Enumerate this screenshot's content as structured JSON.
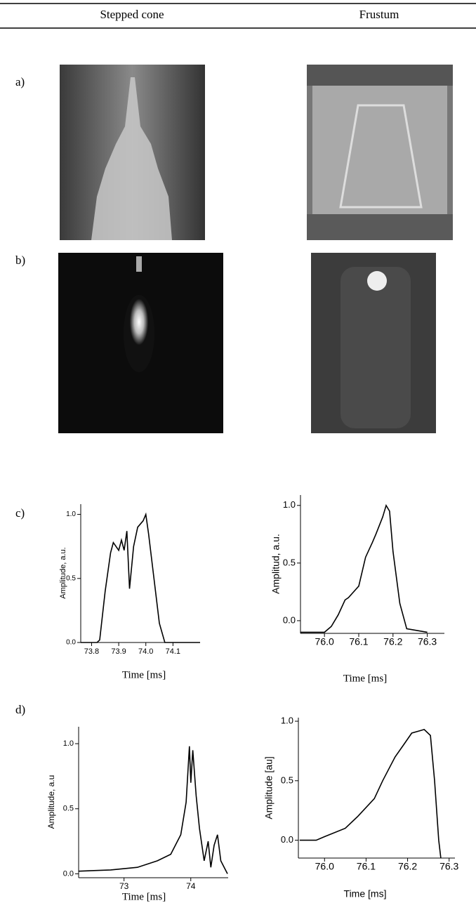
{
  "table": {
    "headers": [
      "Stepped cone",
      "Frustum"
    ],
    "row_labels": [
      "a)",
      "b)",
      "c)",
      "d)"
    ]
  },
  "chart_data": [
    {
      "type": "line",
      "x_label": "Time [ms]",
      "y_label": "Amplitude, a.u.",
      "color": "#000000",
      "x": [
        73.76,
        73.82,
        73.83,
        73.85,
        73.87,
        73.88,
        73.9,
        73.91,
        73.92,
        73.93,
        73.94,
        73.955,
        73.97,
        73.99,
        74.0,
        74.01,
        74.03,
        74.05,
        74.07,
        74.2
      ],
      "values": [
        0,
        0,
        0.02,
        0.4,
        0.7,
        0.78,
        0.72,
        0.8,
        0.72,
        0.87,
        0.42,
        0.75,
        0.9,
        0.95,
        1.0,
        0.85,
        0.5,
        0.15,
        0,
        0
      ],
      "xlim": [
        73.76,
        74.2
      ],
      "ylim": [
        0,
        1.08
      ],
      "xticks": [
        73.8,
        73.9,
        {
          "value": 74,
          "label": "74.0"
        },
        74.1
      ],
      "yticks": [
        {
          "value": 0,
          "label": "0.0"
        },
        0.5,
        {
          "value": 1,
          "label": "1.0"
        }
      ]
    },
    {
      "type": "line",
      "x_label": "Time [ms]",
      "y_label": "Amplitud, a.u.",
      "color": "#000000",
      "x": [
        75.93,
        76.0,
        76.02,
        76.04,
        76.06,
        76.07,
        76.1,
        76.12,
        76.14,
        76.15,
        76.17,
        76.18,
        76.19,
        76.2,
        76.22,
        76.24,
        76.3
      ],
      "values": [
        -0.1,
        -0.1,
        -0.05,
        0.05,
        0.18,
        0.2,
        0.3,
        0.55,
        0.68,
        0.75,
        0.9,
        1.0,
        0.95,
        0.6,
        0.15,
        -0.07,
        -0.1
      ],
      "xlim": [
        75.93,
        76.35
      ],
      "ylim": [
        -0.11,
        1.09
      ],
      "xticks": [
        {
          "value": 76,
          "label": "76.0"
        },
        76.1,
        76.2,
        76.3
      ],
      "yticks": [
        {
          "value": 0,
          "label": "0.0"
        },
        0.5,
        {
          "value": 1,
          "label": "1.0"
        }
      ]
    },
    {
      "type": "line",
      "x_label": "Time [ms]",
      "y_label": "Amplitude, a.u",
      "color": "#000000",
      "x": [
        72.32,
        72.8,
        73.2,
        73.5,
        73.7,
        73.85,
        73.93,
        73.98,
        74.0,
        74.03,
        74.08,
        74.13,
        74.2,
        74.26,
        74.3,
        74.35,
        74.4,
        74.45,
        74.5,
        74.55
      ],
      "values": [
        0.02,
        0.03,
        0.05,
        0.1,
        0.15,
        0.3,
        0.55,
        0.98,
        0.7,
        0.95,
        0.6,
        0.35,
        0.1,
        0.25,
        0.05,
        0.22,
        0.3,
        0.1,
        0.05,
        0
      ],
      "xlim": [
        72.32,
        74.56
      ],
      "ylim": [
        -0.03,
        1.13
      ],
      "xticks": [
        73,
        74
      ],
      "yticks": [
        {
          "value": 0,
          "label": "0.0"
        },
        0.5,
        {
          "value": 1,
          "label": "1.0"
        }
      ]
    },
    {
      "type": "line",
      "x_label": "Time [ms]",
      "y_label": "Amplitude [au]",
      "color": "#000000",
      "x": [
        75.94,
        75.98,
        76.0,
        76.05,
        76.08,
        76.12,
        76.14,
        76.17,
        76.19,
        76.21,
        76.23,
        76.24,
        76.255,
        76.265,
        76.275,
        76.28
      ],
      "values": [
        0,
        0,
        0.03,
        0.1,
        0.2,
        0.35,
        0.5,
        0.7,
        0.8,
        0.9,
        0.92,
        0.93,
        0.88,
        0.5,
        0,
        -0.15
      ],
      "xlim": [
        75.937,
        76.314
      ],
      "ylim": [
        -0.15,
        1.03
      ],
      "xticks": [
        {
          "value": 76,
          "label": "76.0"
        },
        76.1,
        76.2,
        76.3
      ],
      "yticks": [
        {
          "value": 0,
          "label": "0.0"
        },
        0.5,
        {
          "value": 1,
          "label": "1.0"
        }
      ]
    }
  ]
}
